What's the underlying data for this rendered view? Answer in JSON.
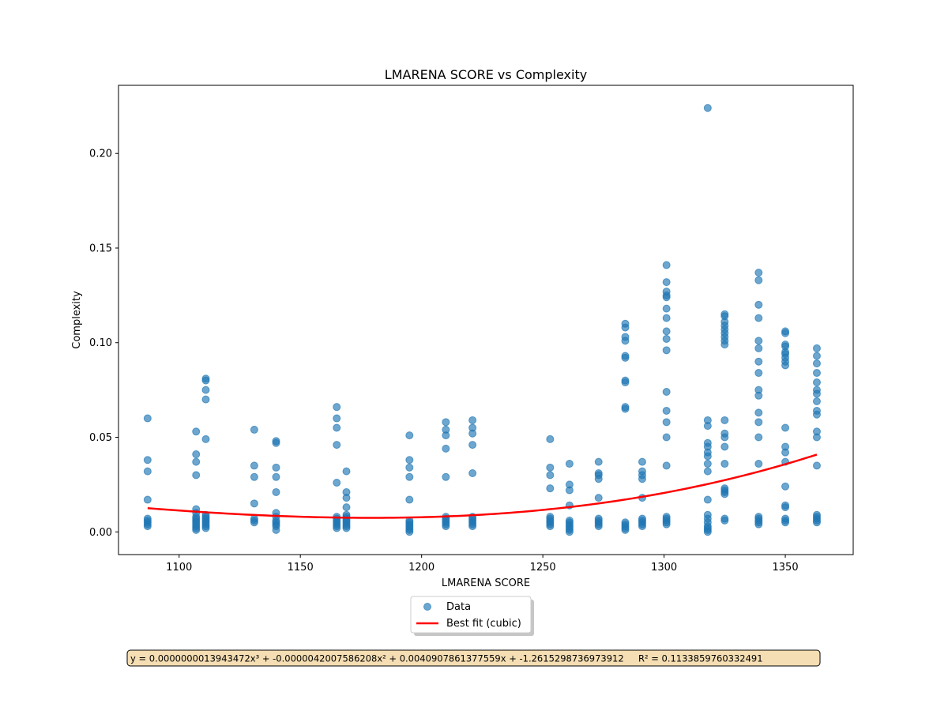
{
  "chart_data": {
    "type": "scatter",
    "title": "LMARENA SCORE vs Complexity",
    "xlabel": "LMARENA SCORE",
    "ylabel": "Complexity",
    "xlim": [
      1075,
      1378
    ],
    "ylim": [
      -0.012,
      0.236
    ],
    "xticks": [
      1100,
      1150,
      1200,
      1250,
      1300,
      1350
    ],
    "yticks": [
      0.0,
      0.05,
      0.1,
      0.15,
      0.2
    ],
    "xtick_labels": [
      "1100",
      "1150",
      "1200",
      "1250",
      "1300",
      "1350"
    ],
    "ytick_labels": [
      "0.00",
      "0.05",
      "0.10",
      "0.15",
      "0.20"
    ],
    "grid": false,
    "legend": {
      "placement": "below-center",
      "entries": [
        "Data",
        "Best fit (cubic)"
      ]
    },
    "annotation": "y = 0.0000000013943472x³ + -0.0000042007586208x² + 0.0040907861377559x + -1.2615298736973912     R² = 0.1133859760332491",
    "colors": {
      "data": "#1f77b4",
      "fit": "#ff0000",
      "annotation_bg": "#f5deb3"
    },
    "fit": {
      "name": "Best fit (cubic)",
      "coefficients": [
        1.3943472e-09,
        -4.2007586208e-06,
        0.0040907861377559,
        -1.2615298736973912
      ],
      "r_squared": 0.1133859760332491,
      "x_range": [
        1087,
        1363
      ]
    },
    "series": [
      {
        "name": "Data",
        "points": [
          [
            1087,
            0.06
          ],
          [
            1087,
            0.038
          ],
          [
            1087,
            0.032
          ],
          [
            1087,
            0.017
          ],
          [
            1087,
            0.007
          ],
          [
            1087,
            0.006
          ],
          [
            1087,
            0.005
          ],
          [
            1087,
            0.004
          ],
          [
            1087,
            0.003
          ],
          [
            1107,
            0.053
          ],
          [
            1107,
            0.041
          ],
          [
            1107,
            0.037
          ],
          [
            1107,
            0.03
          ],
          [
            1107,
            0.012
          ],
          [
            1107,
            0.01
          ],
          [
            1107,
            0.008
          ],
          [
            1107,
            0.007
          ],
          [
            1107,
            0.006
          ],
          [
            1107,
            0.005
          ],
          [
            1107,
            0.004
          ],
          [
            1107,
            0.003
          ],
          [
            1107,
            0.002
          ],
          [
            1107,
            0.001
          ],
          [
            1111,
            0.081
          ],
          [
            1111,
            0.08
          ],
          [
            1111,
            0.075
          ],
          [
            1111,
            0.07
          ],
          [
            1111,
            0.049
          ],
          [
            1111,
            0.009
          ],
          [
            1111,
            0.008
          ],
          [
            1111,
            0.007
          ],
          [
            1111,
            0.006
          ],
          [
            1111,
            0.005
          ],
          [
            1111,
            0.004
          ],
          [
            1111,
            0.003
          ],
          [
            1111,
            0.002
          ],
          [
            1131,
            0.054
          ],
          [
            1131,
            0.035
          ],
          [
            1131,
            0.029
          ],
          [
            1131,
            0.015
          ],
          [
            1131,
            0.007
          ],
          [
            1131,
            0.006
          ],
          [
            1131,
            0.005
          ],
          [
            1140,
            0.048
          ],
          [
            1140,
            0.047
          ],
          [
            1140,
            0.034
          ],
          [
            1140,
            0.029
          ],
          [
            1140,
            0.021
          ],
          [
            1140,
            0.01
          ],
          [
            1140,
            0.008
          ],
          [
            1140,
            0.006
          ],
          [
            1140,
            0.005
          ],
          [
            1140,
            0.004
          ],
          [
            1140,
            0.003
          ],
          [
            1140,
            0.001
          ],
          [
            1165,
            0.066
          ],
          [
            1165,
            0.06
          ],
          [
            1165,
            0.055
          ],
          [
            1165,
            0.046
          ],
          [
            1165,
            0.026
          ],
          [
            1165,
            0.008
          ],
          [
            1165,
            0.007
          ],
          [
            1165,
            0.006
          ],
          [
            1165,
            0.005
          ],
          [
            1165,
            0.004
          ],
          [
            1165,
            0.003
          ],
          [
            1165,
            0.002
          ],
          [
            1169,
            0.032
          ],
          [
            1169,
            0.021
          ],
          [
            1169,
            0.018
          ],
          [
            1169,
            0.013
          ],
          [
            1169,
            0.009
          ],
          [
            1169,
            0.008
          ],
          [
            1169,
            0.007
          ],
          [
            1169,
            0.006
          ],
          [
            1169,
            0.005
          ],
          [
            1169,
            0.004
          ],
          [
            1169,
            0.003
          ],
          [
            1169,
            0.002
          ],
          [
            1195,
            0.051
          ],
          [
            1195,
            0.038
          ],
          [
            1195,
            0.034
          ],
          [
            1195,
            0.029
          ],
          [
            1195,
            0.017
          ],
          [
            1195,
            0.006
          ],
          [
            1195,
            0.005
          ],
          [
            1195,
            0.004
          ],
          [
            1195,
            0.003
          ],
          [
            1195,
            0.002
          ],
          [
            1195,
            0.001
          ],
          [
            1195,
            0.0
          ],
          [
            1210,
            0.058
          ],
          [
            1210,
            0.054
          ],
          [
            1210,
            0.051
          ],
          [
            1210,
            0.044
          ],
          [
            1210,
            0.029
          ],
          [
            1210,
            0.008
          ],
          [
            1210,
            0.007
          ],
          [
            1210,
            0.006
          ],
          [
            1210,
            0.005
          ],
          [
            1210,
            0.004
          ],
          [
            1210,
            0.003
          ],
          [
            1221,
            0.059
          ],
          [
            1221,
            0.055
          ],
          [
            1221,
            0.052
          ],
          [
            1221,
            0.046
          ],
          [
            1221,
            0.031
          ],
          [
            1221,
            0.008
          ],
          [
            1221,
            0.007
          ],
          [
            1221,
            0.006
          ],
          [
            1221,
            0.005
          ],
          [
            1221,
            0.004
          ],
          [
            1221,
            0.003
          ],
          [
            1253,
            0.049
          ],
          [
            1253,
            0.034
          ],
          [
            1253,
            0.03
          ],
          [
            1253,
            0.023
          ],
          [
            1253,
            0.008
          ],
          [
            1253,
            0.007
          ],
          [
            1253,
            0.006
          ],
          [
            1253,
            0.005
          ],
          [
            1253,
            0.004
          ],
          [
            1253,
            0.003
          ],
          [
            1261,
            0.036
          ],
          [
            1261,
            0.025
          ],
          [
            1261,
            0.022
          ],
          [
            1261,
            0.014
          ],
          [
            1261,
            0.006
          ],
          [
            1261,
            0.005
          ],
          [
            1261,
            0.004
          ],
          [
            1261,
            0.003
          ],
          [
            1261,
            0.002
          ],
          [
            1261,
            0.001
          ],
          [
            1261,
            0.0
          ],
          [
            1273,
            0.037
          ],
          [
            1273,
            0.031
          ],
          [
            1273,
            0.03
          ],
          [
            1273,
            0.028
          ],
          [
            1273,
            0.018
          ],
          [
            1273,
            0.007
          ],
          [
            1273,
            0.006
          ],
          [
            1273,
            0.005
          ],
          [
            1273,
            0.004
          ],
          [
            1273,
            0.003
          ],
          [
            1284,
            0.11
          ],
          [
            1284,
            0.108
          ],
          [
            1284,
            0.103
          ],
          [
            1284,
            0.101
          ],
          [
            1284,
            0.093
          ],
          [
            1284,
            0.092
          ],
          [
            1284,
            0.08
          ],
          [
            1284,
            0.079
          ],
          [
            1284,
            0.066
          ],
          [
            1284,
            0.065
          ],
          [
            1284,
            0.005
          ],
          [
            1284,
            0.004
          ],
          [
            1284,
            0.003
          ],
          [
            1284,
            0.002
          ],
          [
            1284,
            0.001
          ],
          [
            1291,
            0.037
          ],
          [
            1291,
            0.032
          ],
          [
            1291,
            0.03
          ],
          [
            1291,
            0.028
          ],
          [
            1291,
            0.018
          ],
          [
            1291,
            0.007
          ],
          [
            1291,
            0.006
          ],
          [
            1291,
            0.005
          ],
          [
            1291,
            0.004
          ],
          [
            1291,
            0.003
          ],
          [
            1301,
            0.141
          ],
          [
            1301,
            0.132
          ],
          [
            1301,
            0.127
          ],
          [
            1301,
            0.125
          ],
          [
            1301,
            0.124
          ],
          [
            1301,
            0.118
          ],
          [
            1301,
            0.113
          ],
          [
            1301,
            0.106
          ],
          [
            1301,
            0.102
          ],
          [
            1301,
            0.096
          ],
          [
            1301,
            0.074
          ],
          [
            1301,
            0.064
          ],
          [
            1301,
            0.058
          ],
          [
            1301,
            0.05
          ],
          [
            1301,
            0.035
          ],
          [
            1301,
            0.008
          ],
          [
            1301,
            0.007
          ],
          [
            1301,
            0.006
          ],
          [
            1301,
            0.005
          ],
          [
            1301,
            0.004
          ],
          [
            1318,
            0.224
          ],
          [
            1318,
            0.059
          ],
          [
            1318,
            0.056
          ],
          [
            1318,
            0.047
          ],
          [
            1318,
            0.045
          ],
          [
            1318,
            0.042
          ],
          [
            1318,
            0.04
          ],
          [
            1318,
            0.036
          ],
          [
            1318,
            0.032
          ],
          [
            1318,
            0.017
          ],
          [
            1318,
            0.009
          ],
          [
            1318,
            0.007
          ],
          [
            1318,
            0.005
          ],
          [
            1318,
            0.003
          ],
          [
            1318,
            0.002
          ],
          [
            1318,
            0.001
          ],
          [
            1318,
            0.0
          ],
          [
            1325,
            0.115
          ],
          [
            1325,
            0.114
          ],
          [
            1325,
            0.111
          ],
          [
            1325,
            0.109
          ],
          [
            1325,
            0.107
          ],
          [
            1325,
            0.105
          ],
          [
            1325,
            0.103
          ],
          [
            1325,
            0.101
          ],
          [
            1325,
            0.099
          ],
          [
            1325,
            0.059
          ],
          [
            1325,
            0.052
          ],
          [
            1325,
            0.05
          ],
          [
            1325,
            0.045
          ],
          [
            1325,
            0.036
          ],
          [
            1325,
            0.023
          ],
          [
            1325,
            0.022
          ],
          [
            1325,
            0.021
          ],
          [
            1325,
            0.02
          ],
          [
            1325,
            0.007
          ],
          [
            1325,
            0.006
          ],
          [
            1339,
            0.137
          ],
          [
            1339,
            0.133
          ],
          [
            1339,
            0.12
          ],
          [
            1339,
            0.113
          ],
          [
            1339,
            0.101
          ],
          [
            1339,
            0.097
          ],
          [
            1339,
            0.09
          ],
          [
            1339,
            0.084
          ],
          [
            1339,
            0.075
          ],
          [
            1339,
            0.072
          ],
          [
            1339,
            0.063
          ],
          [
            1339,
            0.058
          ],
          [
            1339,
            0.05
          ],
          [
            1339,
            0.036
          ],
          [
            1339,
            0.008
          ],
          [
            1339,
            0.007
          ],
          [
            1339,
            0.006
          ],
          [
            1339,
            0.005
          ],
          [
            1339,
            0.004
          ],
          [
            1350,
            0.106
          ],
          [
            1350,
            0.105
          ],
          [
            1350,
            0.099
          ],
          [
            1350,
            0.098
          ],
          [
            1350,
            0.095
          ],
          [
            1350,
            0.094
          ],
          [
            1350,
            0.092
          ],
          [
            1350,
            0.09
          ],
          [
            1350,
            0.088
          ],
          [
            1350,
            0.055
          ],
          [
            1350,
            0.045
          ],
          [
            1350,
            0.042
          ],
          [
            1350,
            0.037
          ],
          [
            1350,
            0.024
          ],
          [
            1350,
            0.014
          ],
          [
            1350,
            0.013
          ],
          [
            1350,
            0.007
          ],
          [
            1350,
            0.006
          ],
          [
            1350,
            0.005
          ],
          [
            1363,
            0.097
          ],
          [
            1363,
            0.093
          ],
          [
            1363,
            0.089
          ],
          [
            1363,
            0.084
          ],
          [
            1363,
            0.079
          ],
          [
            1363,
            0.075
          ],
          [
            1363,
            0.073
          ],
          [
            1363,
            0.069
          ],
          [
            1363,
            0.064
          ],
          [
            1363,
            0.062
          ],
          [
            1363,
            0.053
          ],
          [
            1363,
            0.05
          ],
          [
            1363,
            0.035
          ],
          [
            1363,
            0.009
          ],
          [
            1363,
            0.008
          ],
          [
            1363,
            0.007
          ],
          [
            1363,
            0.006
          ],
          [
            1363,
            0.005
          ]
        ]
      }
    ]
  }
}
